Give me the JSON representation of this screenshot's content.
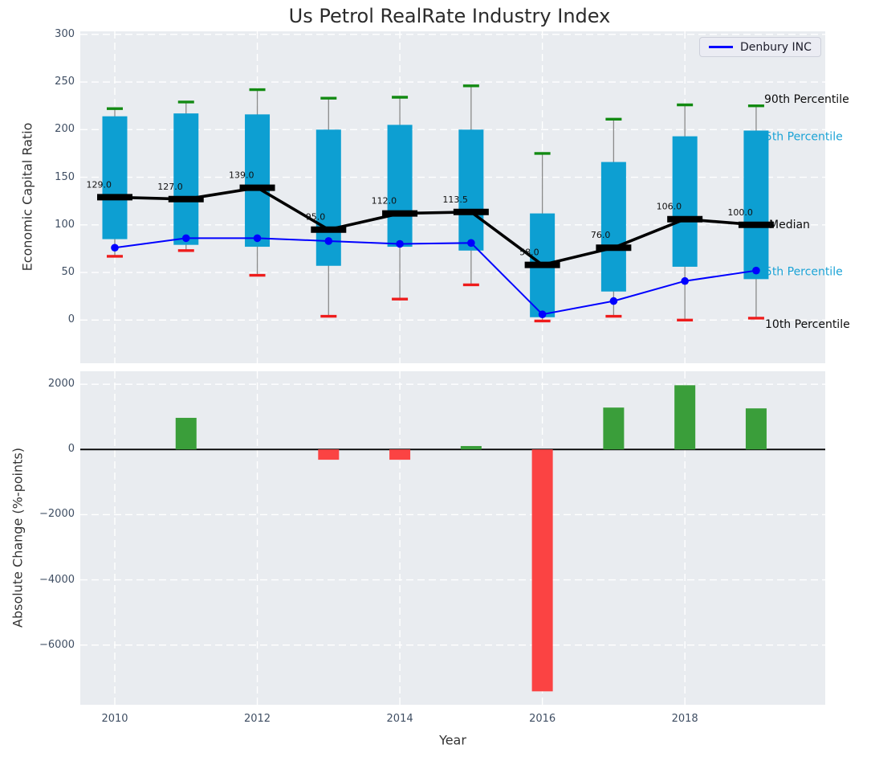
{
  "title": "Us Petrol RealRate Industry Index",
  "legend": {
    "label": "Denbury INC"
  },
  "colors": {
    "box": "#0d9fd2",
    "cap_high": "#128a12",
    "cap_low": "#ee1c1c",
    "median_line": "#000000",
    "company_line": "#0000ff",
    "bar_positive": "#3a9e3a",
    "bar_negative": "#fb4343",
    "axes_background": "#e9ecf0",
    "grid": "#ffffff",
    "tick_text": "#3f4e63",
    "annotation_cyan": "#1ba3d6",
    "annotation_black": "#0d0d0d"
  },
  "chart_data": [
    {
      "type": "boxplot-line",
      "title": "Us Petrol RealRate Industry Index",
      "ylabel": "Economic Capital Ratio",
      "ylim": [
        -45,
        304
      ],
      "yticks": [
        0,
        50,
        100,
        150,
        200,
        250,
        300
      ],
      "grid": "white-dashed",
      "x": [
        2010,
        2011,
        2012,
        2013,
        2014,
        2015,
        2016,
        2017,
        2018,
        2019
      ],
      "series": [
        {
          "name": "90th Percentile",
          "values": [
            222,
            229,
            242,
            233,
            234,
            246,
            175,
            211,
            226,
            225
          ]
        },
        {
          "name": "75th Percentile",
          "values": [
            214,
            217,
            216,
            200,
            205,
            200,
            112,
            166,
            193,
            199
          ]
        },
        {
          "name": "Median",
          "values": [
            129,
            127,
            139,
            95,
            112,
            113.5,
            58,
            76,
            106,
            100
          ],
          "labels": [
            "129.0",
            "127.0",
            "139.0",
            "95.0",
            "112.0",
            "113.5",
            "58.0",
            "76.0",
            "106.0",
            "100.0"
          ]
        },
        {
          "name": "25th Percentile",
          "values": [
            85,
            79,
            77,
            57,
            77,
            73,
            3,
            30,
            56,
            43
          ]
        },
        {
          "name": "10th Percentile",
          "values": [
            67,
            73,
            47,
            4,
            22,
            37,
            -1,
            4,
            0,
            2
          ]
        },
        {
          "name": "Denbury INC",
          "values": [
            76,
            86,
            86,
            83,
            80,
            81,
            6,
            20,
            41,
            52
          ]
        }
      ],
      "right_labels": [
        "90th Percentile",
        "75th Percentile",
        "Median",
        "25th Percentile",
        "10th Percentile"
      ],
      "legend": {
        "label": "Denbury INC",
        "position": "upper right"
      }
    },
    {
      "type": "bar",
      "ylabel": "Absolute Change (%-points)",
      "xlabel": "Year",
      "ylim": [
        -7830,
        2400
      ],
      "yticks": [
        2000,
        0,
        -2000,
        -4000,
        -6000
      ],
      "xticks": [
        2010,
        2012,
        2014,
        2016,
        2018
      ],
      "grid": "white-dashed",
      "x": [
        2010,
        2011,
        2012,
        2013,
        2014,
        2015,
        2016,
        2017,
        2018,
        2019
      ],
      "values": [
        0,
        970,
        0,
        -315,
        -315,
        105,
        -7420,
        1285,
        1970,
        1260
      ],
      "zero_line": true
    }
  ]
}
